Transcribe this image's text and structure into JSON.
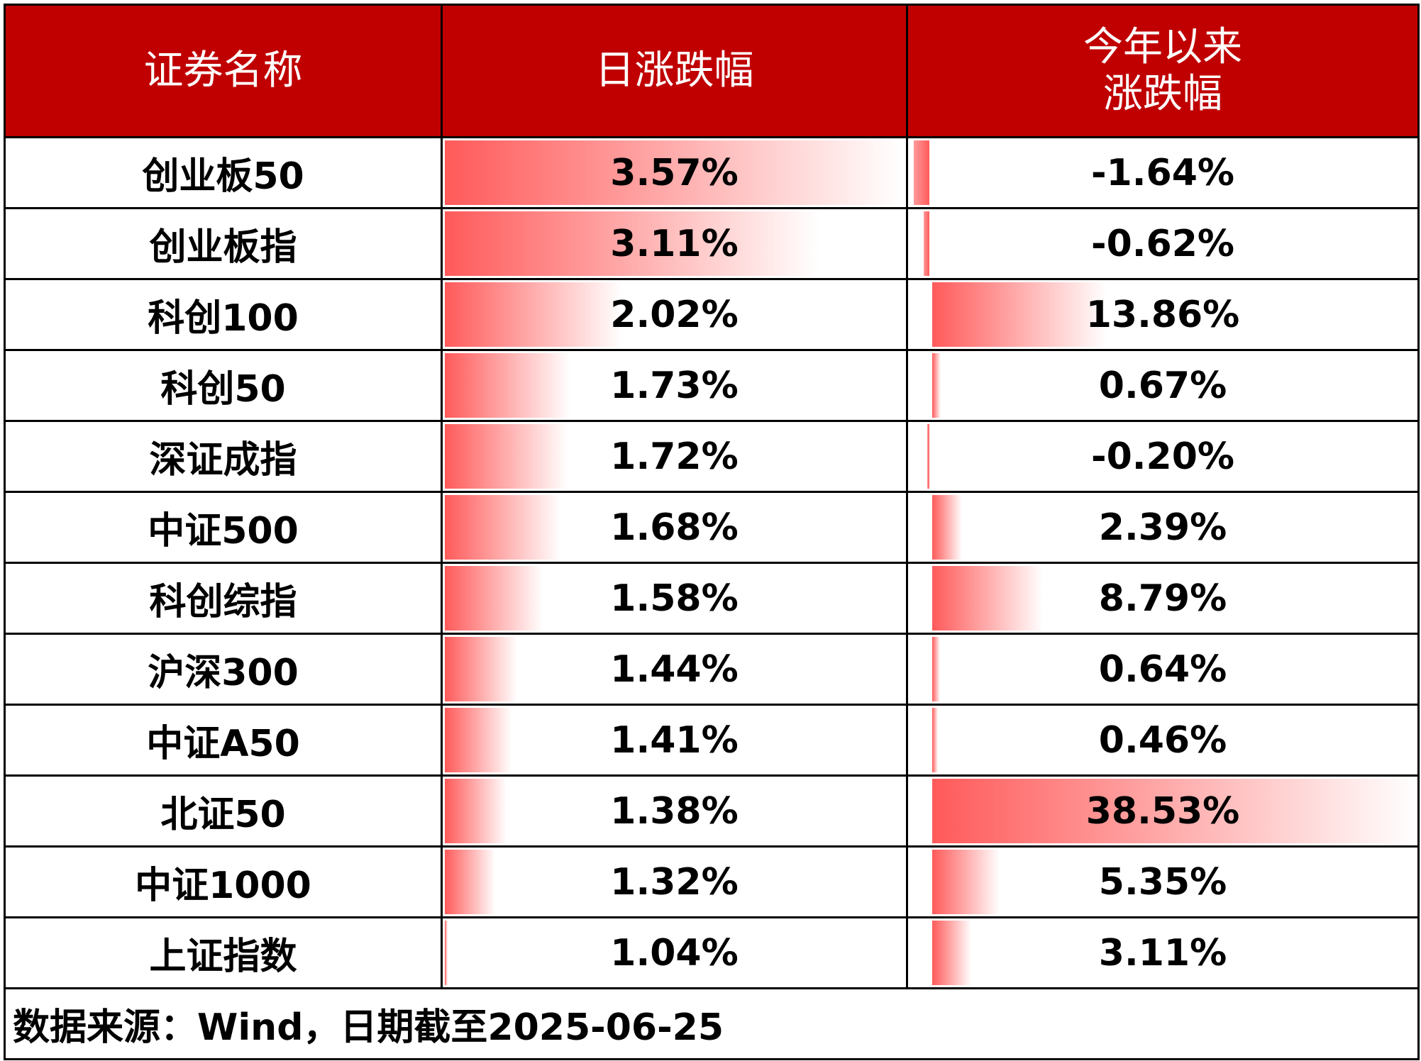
{
  "header": {
    "name": "证券名称",
    "daily": "日涨跌幅",
    "ytd_line1": "今年以来",
    "ytd_line2": "涨跌幅"
  },
  "bar_color": "#ff5a5a",
  "header_color": "#c00000",
  "rows": [
    {
      "name": "创业板50",
      "daily": "3.57%",
      "ytd": "-1.64%"
    },
    {
      "name": "创业板指",
      "daily": "3.11%",
      "ytd": "-0.62%"
    },
    {
      "name": "科创100",
      "daily": "2.02%",
      "ytd": "13.86%"
    },
    {
      "name": "科创50",
      "daily": "1.73%",
      "ytd": "0.67%"
    },
    {
      "name": "深证成指",
      "daily": "1.72%",
      "ytd": "-0.20%"
    },
    {
      "name": "中证500",
      "daily": "1.68%",
      "ytd": "2.39%"
    },
    {
      "name": "科创综指",
      "daily": "1.58%",
      "ytd": "8.79%"
    },
    {
      "name": "沪深300",
      "daily": "1.44%",
      "ytd": "0.64%"
    },
    {
      "name": "中证A50",
      "daily": "1.41%",
      "ytd": "0.46%"
    },
    {
      "name": "北证50",
      "daily": "1.38%",
      "ytd": "38.53%"
    },
    {
      "name": "中证1000",
      "daily": "1.32%",
      "ytd": "5.35%"
    },
    {
      "name": "上证指数",
      "daily": "1.04%",
      "ytd": "3.11%"
    }
  ],
  "footer": "数据来源：Wind，日期截至2025-06-25"
}
